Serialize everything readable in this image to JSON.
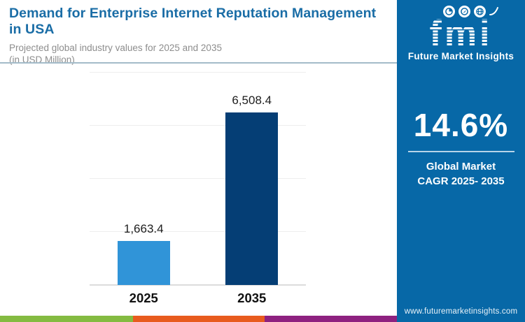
{
  "header": {
    "title_line1": "Demand for Enterprise Internet Reputation Management",
    "title_line2": "in USA",
    "subtitle_line1": "Projected global industry values for 2025 and 2035",
    "subtitle_line2": "(in USD Million)"
  },
  "chart_data": {
    "type": "bar",
    "title": "Demand for Enterprise Internet Reputation Management in USA",
    "unit": "USD Million",
    "categories": [
      "2025",
      "2035"
    ],
    "values": [
      1663.4,
      6508.4
    ],
    "value_labels": [
      "1,663.4",
      "6,508.4"
    ],
    "bar_colors": [
      "#3094d8",
      "#053e75"
    ],
    "ylim": [
      0,
      8000
    ],
    "gridlines": [
      2000,
      4000,
      6000,
      8000
    ],
    "grid": true,
    "legend": false,
    "xlabel": "",
    "ylabel": ""
  },
  "sidebar": {
    "background": "#0768a7",
    "logo": {
      "text": "fmi",
      "tagline": "Future Market Insights",
      "icons": [
        "pie-chart-icon",
        "compass-icon",
        "globe-icon"
      ]
    },
    "cagr": {
      "value": "14.6%",
      "label_line1": "Global Market",
      "label_line2": "CAGR 2025- 2035"
    },
    "website": "www.futuremarketinsights.com"
  },
  "footer_stripe_colors": [
    "#84bb41",
    "#e85b1e",
    "#8e2180"
  ]
}
